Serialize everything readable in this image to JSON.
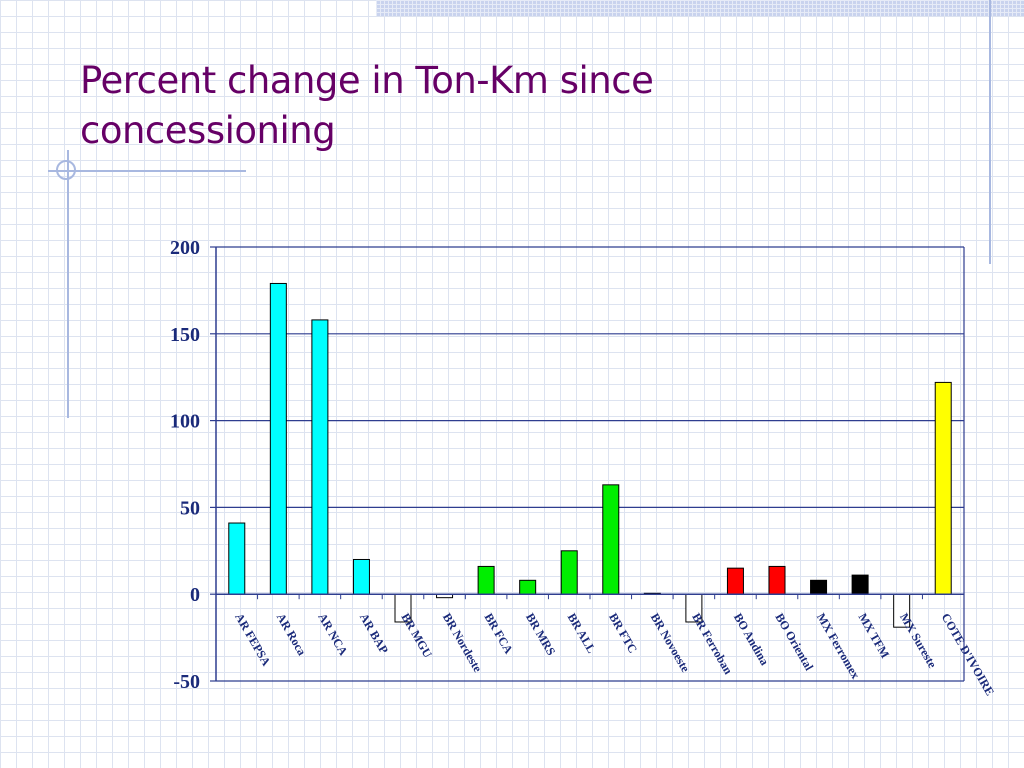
{
  "slide": {
    "title_line1": "Percent change in Ton-Km since",
    "title_line2": "concessioning"
  },
  "colors": {
    "title": "#660066",
    "axis_text": "#1a2a7a",
    "axis_line": "#2e3d8f"
  },
  "chart_data": {
    "type": "bar",
    "title": "",
    "xlabel": "",
    "ylabel": "",
    "ylim": [
      -50,
      200
    ],
    "yticks": [
      200,
      150,
      100,
      50,
      0,
      -50
    ],
    "grid": true,
    "legend": "none",
    "categories": [
      "AR FEPSA",
      "AR Roca",
      "AR NCA",
      "AR BAP",
      "BR MGU",
      "BR Nordeste",
      "BR FCA",
      "BR MRS",
      "BR ALL",
      "BR FTC",
      "BR Novoeste",
      "BR Ferroban",
      "BO Andina",
      "BO Oriental",
      "MX Ferromex",
      "MX TFM",
      "MX Sureste",
      "COTE D'IVOIRE"
    ],
    "values": [
      41,
      179,
      158,
      20,
      -16,
      -2,
      16,
      8,
      25,
      63,
      0.5,
      -16,
      15,
      16,
      8,
      11,
      -19,
      122
    ],
    "bar_colors": [
      "#00ffff",
      "#00ffff",
      "#00ffff",
      "#00ffff",
      "#ffffff",
      "#ffffff",
      "#00ee00",
      "#00ee00",
      "#00ee00",
      "#00ee00",
      "#ffffff",
      "#ffffff",
      "#ff0000",
      "#ff0000",
      "#000000",
      "#000000",
      "#ffffff",
      "#ffff00"
    ]
  }
}
